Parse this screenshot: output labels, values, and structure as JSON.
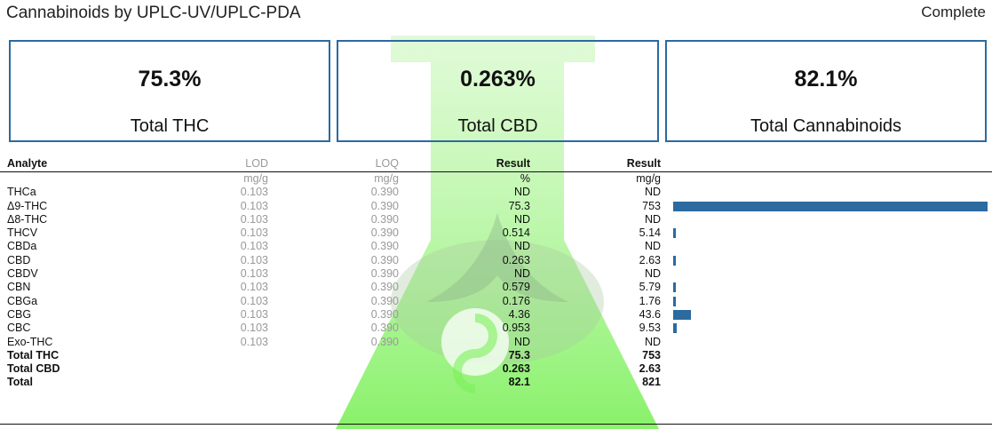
{
  "header": {
    "title": "Cannabinoids by UPLC-UV/UPLC-PDA",
    "status": "Complete"
  },
  "colors": {
    "accent": "#2c6aa0",
    "watermark": "#7cf05a"
  },
  "cards": [
    {
      "value": "75.3%",
      "label": "Total THC"
    },
    {
      "value": "0.263%",
      "label": "Total CBD"
    },
    {
      "value": "82.1%",
      "label": "Total Cannabinoids"
    }
  ],
  "table": {
    "headers": {
      "analyte": "Analyte",
      "lod": "LOD",
      "loq": "LOQ",
      "result_pct": "Result",
      "result_mg": "Result"
    },
    "units": {
      "lod": "mg/g",
      "loq": "mg/g",
      "result_pct": "%",
      "result_mg": "mg/g"
    },
    "bar_max_mg": 753,
    "rows": [
      {
        "analyte": "THCa",
        "lod": "0.103",
        "loq": "0.390",
        "pct": "ND",
        "mg": "ND",
        "mg_value": 0
      },
      {
        "analyte": "Δ9-THC",
        "lod": "0.103",
        "loq": "0.390",
        "pct": "75.3",
        "mg": "753",
        "mg_value": 753
      },
      {
        "analyte": "Δ8-THC",
        "lod": "0.103",
        "loq": "0.390",
        "pct": "ND",
        "mg": "ND",
        "mg_value": 0
      },
      {
        "analyte": "THCV",
        "lod": "0.103",
        "loq": "0.390",
        "pct": "0.514",
        "mg": "5.14",
        "mg_value": 5.14
      },
      {
        "analyte": "CBDa",
        "lod": "0.103",
        "loq": "0.390",
        "pct": "ND",
        "mg": "ND",
        "mg_value": 0
      },
      {
        "analyte": "CBD",
        "lod": "0.103",
        "loq": "0.390",
        "pct": "0.263",
        "mg": "2.63",
        "mg_value": 2.63
      },
      {
        "analyte": "CBDV",
        "lod": "0.103",
        "loq": "0.390",
        "pct": "ND",
        "mg": "ND",
        "mg_value": 0
      },
      {
        "analyte": "CBN",
        "lod": "0.103",
        "loq": "0.390",
        "pct": "0.579",
        "mg": "5.79",
        "mg_value": 5.79
      },
      {
        "analyte": "CBGa",
        "lod": "0.103",
        "loq": "0.390",
        "pct": "0.176",
        "mg": "1.76",
        "mg_value": 1.76
      },
      {
        "analyte": "CBG",
        "lod": "0.103",
        "loq": "0.390",
        "pct": "4.36",
        "mg": "43.6",
        "mg_value": 43.6
      },
      {
        "analyte": "CBC",
        "lod": "0.103",
        "loq": "0.390",
        "pct": "0.953",
        "mg": "9.53",
        "mg_value": 9.53
      },
      {
        "analyte": "Exo-THC",
        "lod": "0.103",
        "loq": "0.390",
        "pct": "ND",
        "mg": "ND",
        "mg_value": 0
      }
    ],
    "totals": [
      {
        "analyte": "Total THC",
        "pct": "75.3",
        "mg": "753"
      },
      {
        "analyte": "Total CBD",
        "pct": "0.263",
        "mg": "2.63"
      },
      {
        "analyte": "Total",
        "pct": "82.1",
        "mg": "821"
      }
    ]
  }
}
